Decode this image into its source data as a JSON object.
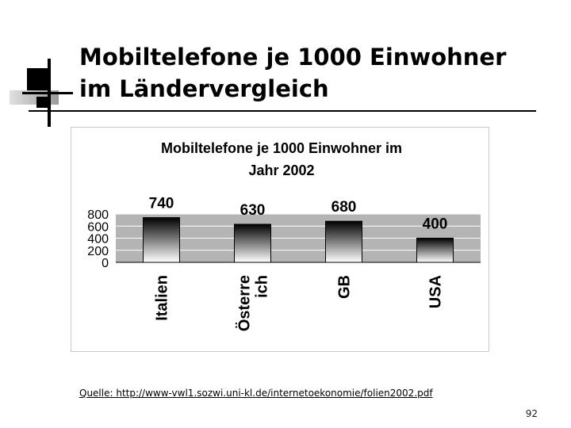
{
  "slide": {
    "title_line1": "Mobiltelefone je 1000 Einwohner",
    "title_line2": "im Ländervergleich",
    "source": "Quelle: http://www-vwl1.sozwi.uni-kl.de/internetoekonomie/folien2002.pdf",
    "page_number": "92"
  },
  "chart_data": {
    "type": "bar",
    "title_line1": "Mobiltelefone je 1000 Einwohner im",
    "title_line2": "Jahr 2002",
    "categories": [
      {
        "lines": [
          "Italien"
        ]
      },
      {
        "lines": [
          "Österre",
          "ich"
        ]
      },
      {
        "lines": [
          "GB"
        ]
      },
      {
        "lines": [
          "USA"
        ]
      }
    ],
    "values": [
      740,
      630,
      680,
      400
    ],
    "data_labels": [
      "740",
      "630",
      "680",
      "400"
    ],
    "yticks": [
      "0",
      "200",
      "400",
      "600",
      "800"
    ],
    "ylim": [
      0,
      800
    ],
    "grid": true,
    "legend": "none",
    "colors": {
      "plot_background": "#b4b4b4",
      "bar_top": "#000000",
      "bar_bottom": "#ffffff",
      "bar_outline": "#000000"
    }
  }
}
